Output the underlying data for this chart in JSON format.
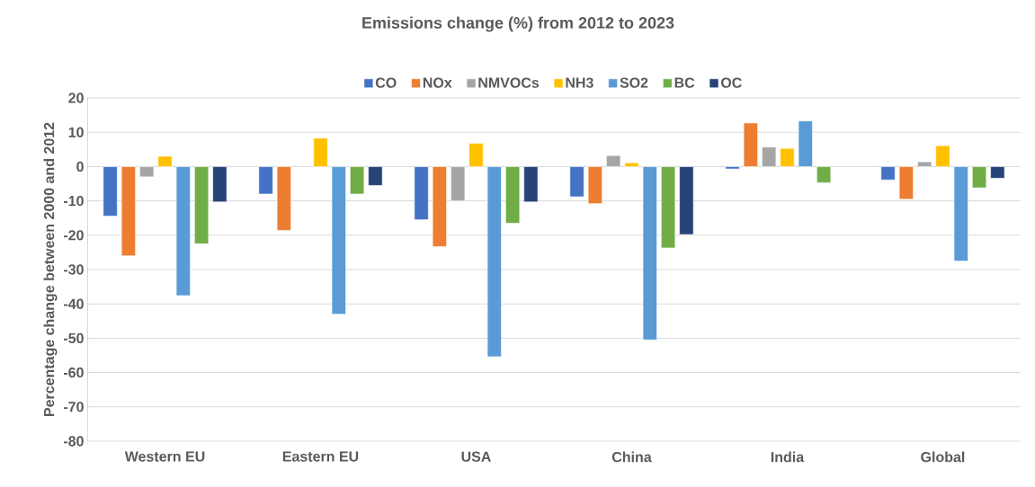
{
  "chart_data": {
    "type": "bar",
    "title": "Emissions change (%) from 2012 to 2023",
    "ylabel": "Percentage change between 2000 and 2012",
    "categories": [
      "Western EU",
      "Eastern EU",
      "USA",
      "China",
      "India",
      "Global"
    ],
    "series": [
      {
        "name": "CO",
        "color": "#4472c4",
        "values": [
          -14.4,
          -8,
          -15.5,
          -8.8,
          -0.7,
          -3.9
        ]
      },
      {
        "name": "NOx",
        "color": "#ed7d31",
        "values": [
          -26,
          -18.6,
          -23.3,
          -10.8,
          12.7,
          -9.5
        ]
      },
      {
        "name": "NMVOCs",
        "color": "#a5a5a5",
        "values": [
          -3,
          null,
          -10,
          3.2,
          5.7,
          1.4
        ]
      },
      {
        "name": "NH3",
        "color": "#ffc000",
        "values": [
          3,
          8.3,
          6.8,
          1.1,
          5.3,
          6.1
        ]
      },
      {
        "name": "SO2",
        "color": "#5b9bd5",
        "values": [
          -37.6,
          -43,
          -55.4,
          -50.5,
          13.3,
          -27.5
        ]
      },
      {
        "name": "BC",
        "color": "#70ad47",
        "values": [
          -22.5,
          -8,
          -16.5,
          -23.7,
          -4.7,
          -6.2
        ]
      },
      {
        "name": "OC",
        "color": "#264478",
        "values": [
          -10.3,
          -5.5,
          -10.3,
          -19.8,
          null,
          -3.4
        ]
      }
    ],
    "ylim": [
      -80,
      20
    ],
    "yticks": [
      -80,
      -70,
      -60,
      -50,
      -40,
      -30,
      -20,
      -10,
      0,
      10,
      20
    ],
    "grid": "y",
    "legend": "top"
  }
}
